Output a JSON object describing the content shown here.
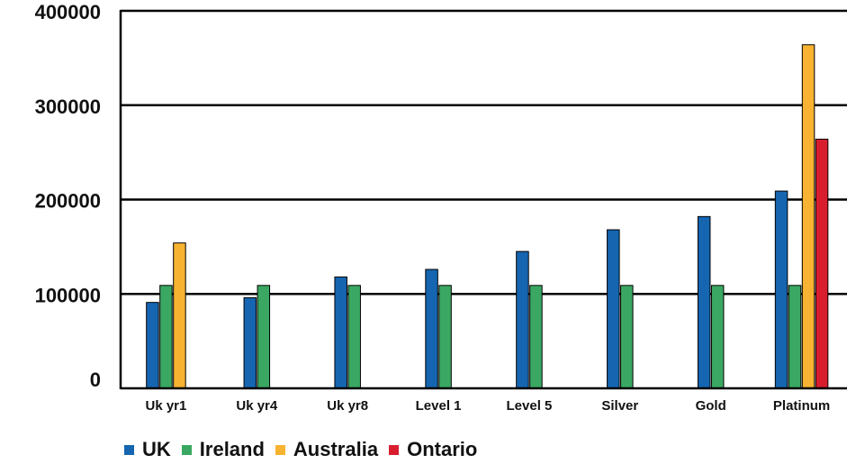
{
  "chart_data": {
    "type": "bar",
    "title": "",
    "xlabel": "",
    "ylabel": "",
    "ylim": [
      0,
      400000
    ],
    "yticks": [
      0,
      100000,
      200000,
      300000,
      400000
    ],
    "ytick_labels": [
      "0",
      "100000",
      "200000",
      "300000",
      "400000"
    ],
    "grid": true,
    "legend_position": "bottom",
    "categories": [
      "Uk yr1",
      "Uk yr4",
      "Uk yr8",
      "Level 1",
      "Level 5",
      "Silver",
      "Gold",
      "Platinum"
    ],
    "series": [
      {
        "name": "UK",
        "color": "#1565b0",
        "values": [
          91000,
          96000,
          118000,
          126000,
          145000,
          168000,
          182000,
          209000
        ]
      },
      {
        "name": "Ireland",
        "color": "#3aa862",
        "values": [
          109000,
          109000,
          109000,
          109000,
          109000,
          109000,
          109000,
          109000
        ]
      },
      {
        "name": "Australia",
        "color": "#f7b331",
        "values": [
          154000,
          null,
          null,
          null,
          null,
          null,
          null,
          364000
        ]
      },
      {
        "name": "Ontario",
        "color": "#d81e2e",
        "values": [
          null,
          null,
          null,
          null,
          null,
          null,
          null,
          264000
        ]
      }
    ]
  }
}
